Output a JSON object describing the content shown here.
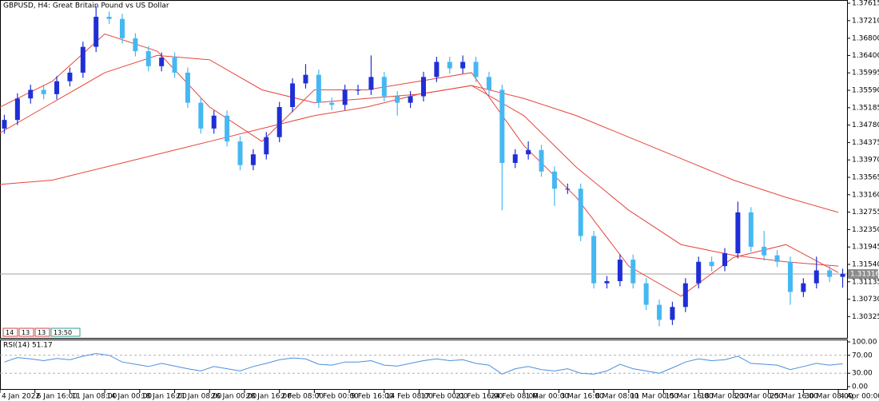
{
  "chart_data": [
    {
      "type": "candlestick",
      "title": "GBPUSD, H4:  Great Britain Pound vs US Dollar",
      "markers": [
        "14",
        "13",
        "13",
        "13:50"
      ],
      "xlim": [
        0,
        388
      ],
      "xticks": [
        {
          "value": 0,
          "label": "4 Jan 2022"
        },
        {
          "value": 16,
          "label": "6 Jan 16:00"
        },
        {
          "value": 32,
          "label": "11 Jan 08:00"
        },
        {
          "value": 48,
          "label": "14 Jan 00:00"
        },
        {
          "value": 64,
          "label": "18 Jan 16:00"
        },
        {
          "value": 80,
          "label": "21 Jan 08:00"
        },
        {
          "value": 96,
          "label": "26 Jan 00:00"
        },
        {
          "value": 112,
          "label": "28 Jan 16:00"
        },
        {
          "value": 128,
          "label": "2 Feb 08:00"
        },
        {
          "value": 144,
          "label": "7 Feb 00:00"
        },
        {
          "value": 160,
          "label": "9 Feb 16:00"
        },
        {
          "value": 176,
          "label": "14 Feb 08:00"
        },
        {
          "value": 192,
          "label": "17 Feb 00:00"
        },
        {
          "value": 208,
          "label": "21 Feb 16:00"
        },
        {
          "value": 224,
          "label": "24 Feb 08:00"
        },
        {
          "value": 240,
          "label": "1 Mar 00:00"
        },
        {
          "value": 256,
          "label": "3 Mar 16:00"
        },
        {
          "value": 272,
          "label": "8 Mar 08:00"
        },
        {
          "value": 288,
          "label": "11 Mar 00:00"
        },
        {
          "value": 304,
          "label": "15 Mar 16:00"
        },
        {
          "value": 320,
          "label": "18 Mar 08:00"
        },
        {
          "value": 336,
          "label": "23 Mar 00:00"
        },
        {
          "value": 352,
          "label": "25 Mar 16:00"
        },
        {
          "value": 368,
          "label": "30 Mar 08:00"
        },
        {
          "value": 384,
          "label": "4 Apr 00:00"
        }
      ],
      "ylim": [
        1.2983,
        1.3769
      ],
      "yticks": [
        1.37615,
        {
          "value": 1.3721,
          "label": "1.37210"
        },
        {
          "value": 1.368,
          "label": "1.36800"
        },
        {
          "value": 1.364,
          "label": "1.36400"
        },
        1.35995,
        {
          "value": 1.3559,
          "label": "1.35590"
        },
        1.35185,
        {
          "value": 1.3478,
          "label": "1.34780"
        },
        1.34375,
        {
          "value": 1.3397,
          "label": "1.33970"
        },
        1.33565,
        {
          "value": 1.3316,
          "label": "1.33160"
        },
        1.32755,
        {
          "value": 1.3235,
          "label": "1.32350"
        },
        1.31945,
        {
          "value": 1.3154,
          "label": "1.31540"
        },
        1.31135,
        {
          "value": 1.3073,
          "label": "1.30730"
        },
        1.30325
      ],
      "current_price": 1.31316,
      "up_color": "#1f2fd6",
      "down_color": "#45b8f2",
      "x": [
        2,
        8,
        14,
        20,
        26,
        32,
        38,
        44,
        50,
        56,
        62,
        68,
        74,
        80,
        86,
        92,
        98,
        104,
        110,
        116,
        122,
        128,
        134,
        140,
        146,
        152,
        158,
        164,
        170,
        176,
        182,
        188,
        194,
        200,
        206,
        212,
        218,
        224,
        230,
        236,
        242,
        248,
        254,
        260,
        266,
        272,
        278,
        284,
        290,
        296,
        302,
        308,
        314,
        320,
        326,
        332,
        338,
        344,
        350,
        356,
        362,
        368,
        374,
        380,
        386
      ],
      "open": [
        1.347,
        1.349,
        1.354,
        1.356,
        1.355,
        1.358,
        1.36,
        1.366,
        1.373,
        1.3725,
        1.368,
        1.365,
        1.3615,
        1.3635,
        1.36,
        1.353,
        1.347,
        1.35,
        1.344,
        1.3385,
        1.341,
        1.345,
        1.352,
        1.3575,
        1.3595,
        1.353,
        1.3525,
        1.356,
        1.356,
        1.359,
        1.3545,
        1.353,
        1.3545,
        1.359,
        1.3625,
        1.361,
        1.3625,
        1.359,
        1.356,
        1.339,
        1.341,
        1.342,
        1.337,
        1.333,
        1.333,
        1.322,
        1.311,
        1.3115,
        1.3165,
        1.311,
        1.306,
        1.3025,
        1.3055,
        1.311,
        1.316,
        1.315,
        1.318,
        1.3275,
        1.3195,
        1.3175,
        1.316,
        1.309,
        1.311,
        1.314,
        1.3125
      ],
      "high": [
        1.3502,
        1.3552,
        1.3572,
        1.3572,
        1.3592,
        1.3612,
        1.3672,
        1.3755,
        1.3742,
        1.3737,
        1.3692,
        1.3662,
        1.3647,
        1.3647,
        1.3612,
        1.3542,
        1.3512,
        1.3512,
        1.3452,
        1.3422,
        1.3462,
        1.3532,
        1.3587,
        1.362,
        1.3607,
        1.3542,
        1.3572,
        1.3572,
        1.364,
        1.3602,
        1.3557,
        1.3557,
        1.3602,
        1.3637,
        1.3637,
        1.364,
        1.3637,
        1.3602,
        1.3572,
        1.3422,
        1.344,
        1.3432,
        1.3382,
        1.3342,
        1.3342,
        1.3232,
        1.3127,
        1.3177,
        1.3177,
        1.3122,
        1.3072,
        1.3067,
        1.3122,
        1.3172,
        1.3172,
        1.3192,
        1.33,
        1.3287,
        1.3232,
        1.3187,
        1.3172,
        1.3122,
        1.3172,
        1.3152,
        1.3144
      ],
      "low": [
        1.3458,
        1.3478,
        1.3528,
        1.3538,
        1.3538,
        1.3568,
        1.3588,
        1.3648,
        1.3713,
        1.3668,
        1.3638,
        1.3603,
        1.3603,
        1.3588,
        1.3518,
        1.3458,
        1.3458,
        1.3428,
        1.3373,
        1.3373,
        1.3398,
        1.3438,
        1.3508,
        1.3563,
        1.3518,
        1.3513,
        1.3513,
        1.3548,
        1.3548,
        1.3533,
        1.35,
        1.3518,
        1.3533,
        1.3578,
        1.3598,
        1.3598,
        1.3578,
        1.3548,
        1.328,
        1.3378,
        1.3398,
        1.3358,
        1.329,
        1.3318,
        1.3208,
        1.3098,
        1.3098,
        1.3103,
        1.3098,
        1.3048,
        1.301,
        1.3013,
        1.3043,
        1.3098,
        1.3138,
        1.3138,
        1.3168,
        1.3183,
        1.3163,
        1.3148,
        1.306,
        1.3078,
        1.3098,
        1.3113,
        1.31
      ],
      "close": [
        1.349,
        1.354,
        1.356,
        1.355,
        1.358,
        1.36,
        1.366,
        1.373,
        1.3725,
        1.368,
        1.365,
        1.3615,
        1.3635,
        1.36,
        1.353,
        1.347,
        1.35,
        1.344,
        1.3385,
        1.341,
        1.345,
        1.352,
        1.3575,
        1.3595,
        1.353,
        1.3525,
        1.356,
        1.356,
        1.359,
        1.3545,
        1.353,
        1.3545,
        1.359,
        1.3625,
        1.361,
        1.3625,
        1.359,
        1.356,
        1.339,
        1.341,
        1.342,
        1.337,
        1.333,
        1.333,
        1.322,
        1.311,
        1.3115,
        1.3165,
        1.311,
        1.306,
        1.3025,
        1.3055,
        1.311,
        1.316,
        1.315,
        1.318,
        1.3275,
        1.3195,
        1.3175,
        1.316,
        1.309,
        1.311,
        1.314,
        1.3125,
        1.3132
      ],
      "ma_x": [
        0,
        24,
        48,
        72,
        96,
        120,
        144,
        168,
        192,
        216,
        240,
        264,
        288,
        312,
        336,
        360,
        384
      ],
      "ma_color": "#e8453c",
      "ma": [
        [
          1.334,
          1.335,
          1.338,
          1.341,
          1.344,
          1.347,
          1.35,
          1.352,
          1.355,
          1.357,
          1.354,
          1.35,
          1.345,
          1.34,
          1.335,
          1.331,
          1.3275
        ],
        [
          1.346,
          1.353,
          1.36,
          1.364,
          1.363,
          1.356,
          1.353,
          1.354,
          1.355,
          1.357,
          1.35,
          1.338,
          1.328,
          1.32,
          1.3175,
          1.316,
          1.315
        ],
        [
          1.352,
          1.358,
          1.369,
          1.365,
          1.352,
          1.344,
          1.356,
          1.356,
          1.358,
          1.36,
          1.343,
          1.331,
          1.315,
          1.308,
          1.317,
          1.32,
          1.3135
        ]
      ]
    },
    {
      "type": "line",
      "label": "RSI(14) 51.17",
      "color": "#4a8fde",
      "ylim": [
        0,
        100
      ],
      "yticks": [
        {
          "value": 100,
          "label": "100.00"
        },
        {
          "value": 70,
          "label": "70.00"
        },
        {
          "value": 30,
          "label": "30.00"
        },
        {
          "value": 0,
          "label": "0.00"
        }
      ],
      "x": [
        2,
        8,
        14,
        20,
        26,
        32,
        38,
        44,
        50,
        56,
        62,
        68,
        74,
        80,
        86,
        92,
        98,
        104,
        110,
        116,
        122,
        128,
        134,
        140,
        146,
        152,
        158,
        164,
        170,
        176,
        182,
        188,
        194,
        200,
        206,
        212,
        218,
        224,
        230,
        236,
        242,
        248,
        254,
        260,
        266,
        272,
        278,
        284,
        290,
        296,
        302,
        308,
        314,
        320,
        326,
        332,
        338,
        344,
        350,
        356,
        362,
        368,
        374,
        380,
        386
      ],
      "values": [
        55,
        65,
        62,
        58,
        63,
        60,
        68,
        74,
        70,
        55,
        50,
        45,
        52,
        46,
        40,
        35,
        45,
        40,
        35,
        45,
        52,
        60,
        64,
        62,
        50,
        48,
        55,
        55,
        58,
        48,
        46,
        52,
        58,
        62,
        58,
        60,
        52,
        48,
        28,
        40,
        45,
        38,
        35,
        40,
        30,
        28,
        35,
        50,
        40,
        35,
        30,
        42,
        55,
        62,
        58,
        60,
        68,
        52,
        50,
        48,
        38,
        45,
        52,
        48,
        51.17
      ]
    }
  ]
}
